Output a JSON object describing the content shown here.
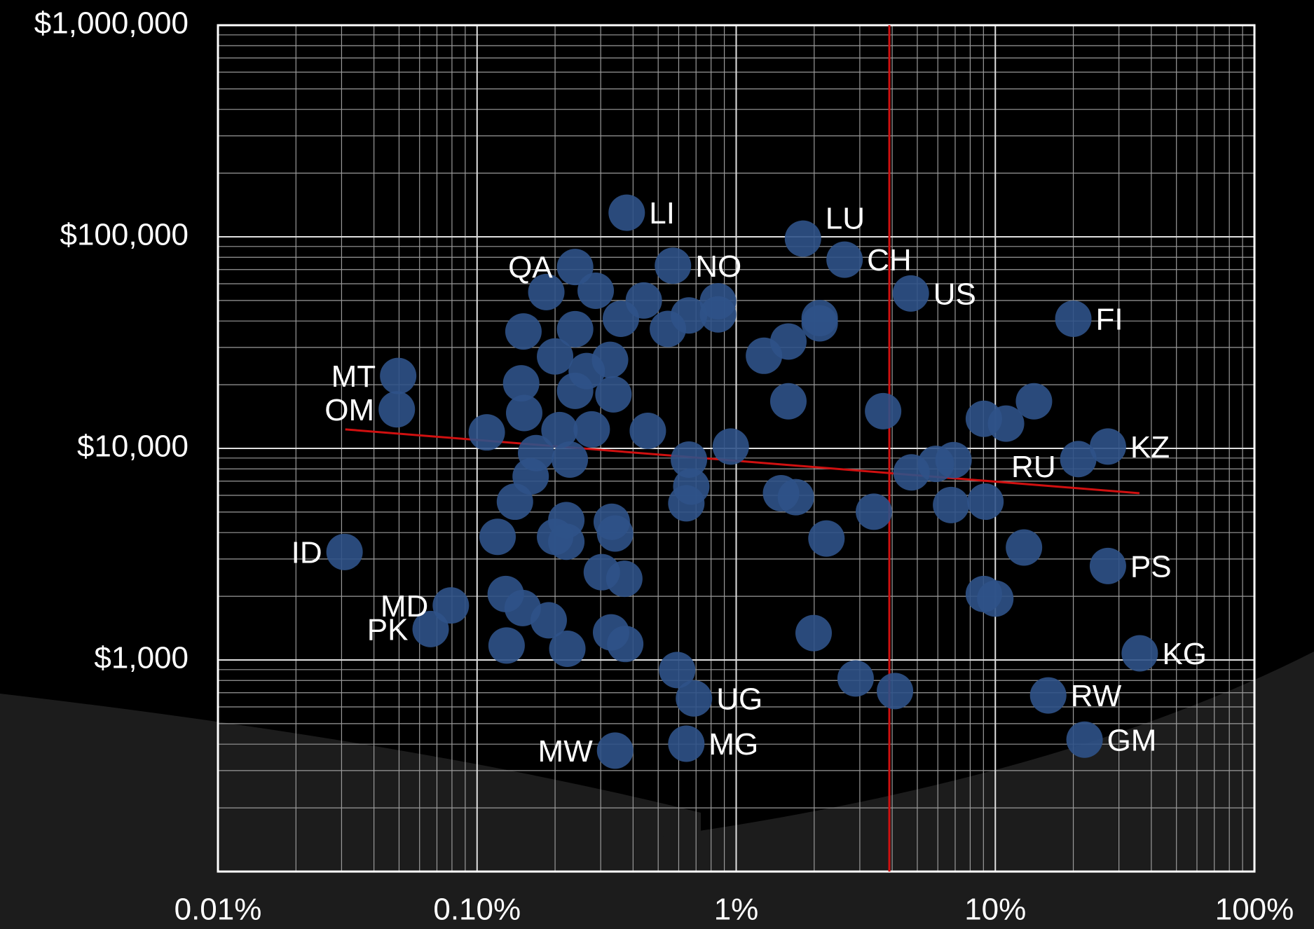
{
  "chart_data": {
    "type": "scatter",
    "color": "#2f5288",
    "xscale": "log",
    "yscale": "log",
    "grid": true,
    "xlim": [
      0.01,
      100
    ],
    "ylim": [
      100,
      1000000
    ],
    "xticks": [
      {
        "value": 0.01,
        "label": "0.01%"
      },
      {
        "value": 0.1,
        "label": "0.10%"
      },
      {
        "value": 1,
        "label": "1%"
      },
      {
        "value": 10,
        "label": "10%"
      },
      {
        "value": 100,
        "label": "100%"
      }
    ],
    "yticks": [
      {
        "value": 1000,
        "label": "$1,000"
      },
      {
        "value": 10000,
        "label": "$10,000"
      },
      {
        "value": 100000,
        "label": "$100,000"
      },
      {
        "value": 1000000,
        "label": "$1,000,000"
      }
    ],
    "xminor": [
      0.02,
      0.03,
      0.04,
      0.05,
      0.06,
      0.07,
      0.08,
      0.09,
      0.2,
      0.3,
      0.4,
      0.5,
      0.6,
      0.7,
      0.8,
      0.9,
      2,
      3,
      4,
      5,
      6,
      7,
      8,
      9,
      20,
      30,
      40,
      50,
      60,
      70,
      80,
      90
    ],
    "yminor": [
      200,
      300,
      400,
      500,
      600,
      700,
      800,
      900,
      2000,
      3000,
      4000,
      5000,
      6000,
      7000,
      8000,
      9000,
      20000,
      30000,
      40000,
      50000,
      60000,
      70000,
      80000,
      90000,
      200000,
      300000,
      400000,
      500000,
      600000,
      700000,
      800000,
      900000
    ],
    "reference_x": 3.9,
    "reference_color": "#d01010",
    "trend": {
      "x": [
        0.031,
        36
      ],
      "y": [
        12300,
        6140
      ],
      "color": "#d01010"
    },
    "labels": [
      "LI",
      "LU",
      "CH",
      "US",
      "NO",
      "QA",
      "FI",
      "MT",
      "OM",
      "KZ",
      "RU",
      "ID",
      "PS",
      "MD",
      "PK",
      "KG",
      "RW",
      "UG",
      "GM",
      "MG",
      "MW",
      null,
      null,
      null,
      null,
      null,
      null,
      null,
      null,
      null,
      null,
      null,
      null,
      null,
      null,
      null,
      null,
      null,
      null,
      null,
      null,
      null,
      null,
      null,
      null,
      null,
      null,
      null,
      null,
      null,
      null,
      null,
      null,
      null,
      null,
      null,
      null,
      null,
      null,
      null,
      null,
      null,
      null,
      null,
      null,
      null,
      null,
      null,
      null,
      null,
      null,
      null,
      null,
      null,
      null,
      null,
      null,
      null,
      null,
      null,
      null,
      null,
      null,
      null,
      null,
      null,
      null,
      null,
      null
    ],
    "x": [
      0.378,
      1.81,
      2.62,
      4.72,
      0.57,
      0.239,
      20.0,
      0.0496,
      0.049,
      27.2,
      20.9,
      0.0308,
      27.2,
      0.0792,
      0.0662,
      36.1,
      16.0,
      0.687,
      22.1,
      0.642,
      0.341,
      0.185,
      0.287,
      0.44,
      0.359,
      0.545,
      0.657,
      0.851,
      0.851,
      2.1,
      2.1,
      0.151,
      0.239,
      0.2,
      1.59,
      1.28,
      0.326,
      0.265,
      0.148,
      0.336,
      0.239,
      1.59,
      14.1,
      3.69,
      9.03,
      11.0,
      0.152,
      0.109,
      0.208,
      0.277,
      0.456,
      0.953,
      0.169,
      0.228,
      0.657,
      4.75,
      5.9,
      6.9,
      0.161,
      0.671,
      1.49,
      1.7,
      0.14,
      0.642,
      3.4,
      6.75,
      9.16,
      0.221,
      0.331,
      0.341,
      0.12,
      0.2,
      0.221,
      2.23,
      12.9,
      0.303,
      0.37,
      9.03,
      10.0,
      0.129,
      0.15,
      0.189,
      0.329,
      0.373,
      0.13,
      0.223,
      1.99,
      0.592,
      2.89,
      4.1
    ],
    "y": [
      130000,
      98000,
      78000,
      54000,
      73000,
      72000,
      41000,
      22000,
      15300,
      10200,
      8900,
      3240,
      2780,
      1810,
      1400,
      1075,
      680,
      658,
      420,
      402,
      373,
      54800,
      55600,
      50000,
      41000,
      36700,
      42500,
      49600,
      43000,
      41300,
      39000,
      35700,
      36600,
      27200,
      32000,
      27400,
      26200,
      23200,
      20300,
      18000,
      18700,
      16700,
      16700,
      15000,
      13800,
      13100,
      14700,
      11900,
      12200,
      12300,
      12100,
      10200,
      9500,
      8850,
      8850,
      7700,
      8450,
      8800,
      7370,
      6600,
      6140,
      5880,
      5600,
      5500,
      5020,
      5400,
      5600,
      4580,
      4500,
      3960,
      3820,
      3820,
      3620,
      3750,
      3400,
      2600,
      2420,
      2050,
      1950,
      2050,
      1760,
      1540,
      1350,
      1190,
      1170,
      1130,
      1340,
      896,
      818,
      713
    ]
  }
}
